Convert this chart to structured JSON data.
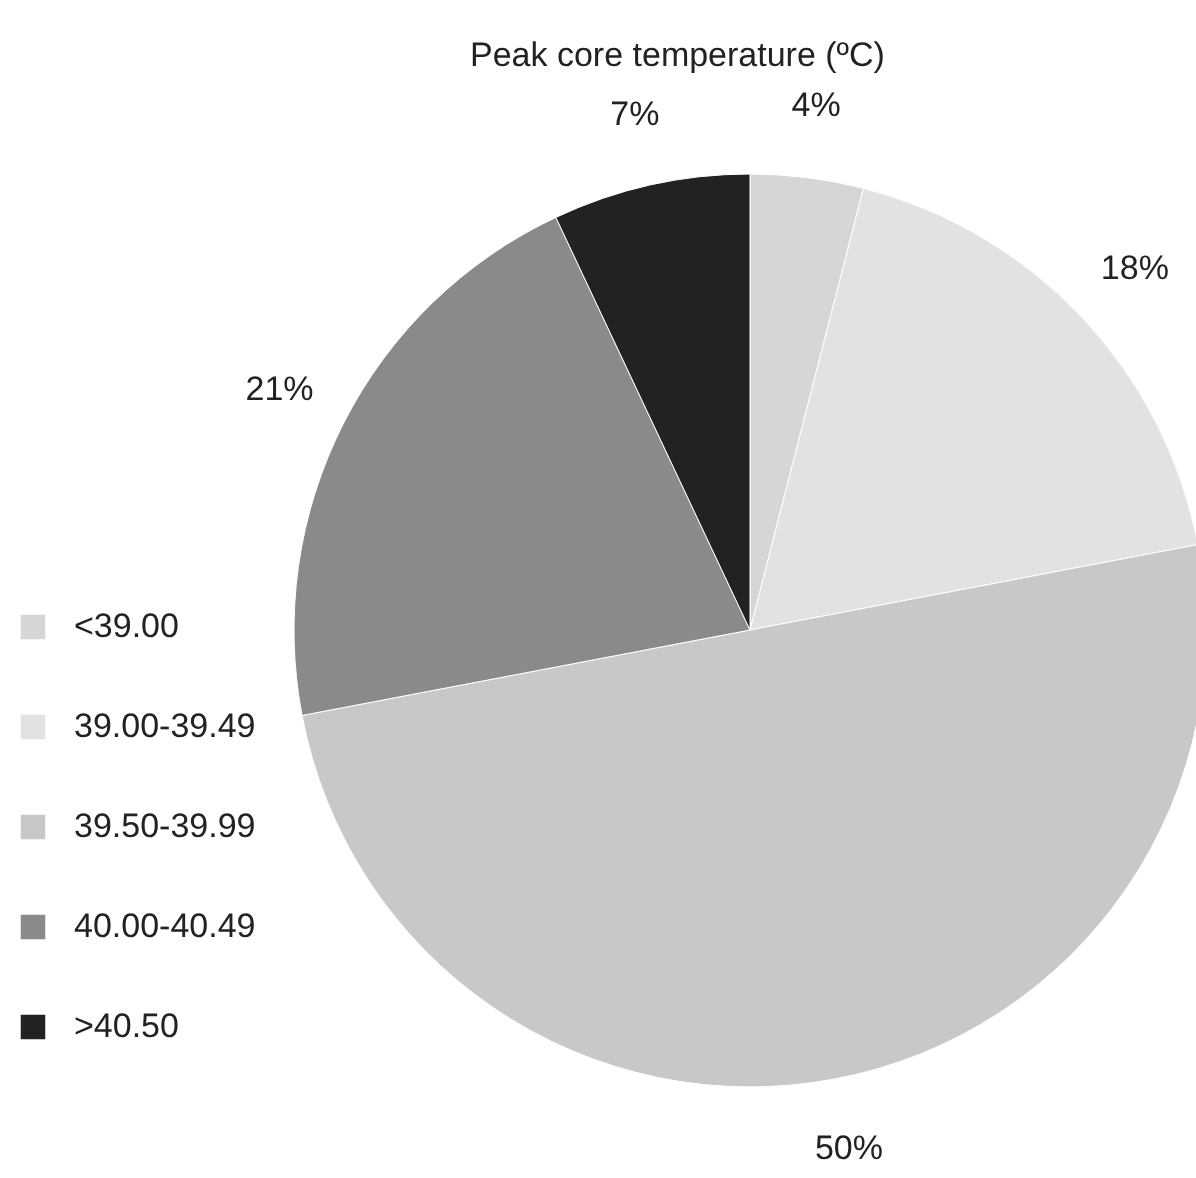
{
  "chart_data": {
    "type": "pie",
    "title": "Peak core temperature (ºC)",
    "categories": [
      "<39.00",
      "39.00-39.49",
      "39.50-39.99",
      "40.00-40.49",
      ">40.50"
    ],
    "values": [
      4,
      18,
      50,
      21,
      7
    ],
    "value_labels": [
      "4%",
      "18%",
      "50%",
      "21%",
      "7%"
    ],
    "colors": [
      "#d6d6d6",
      "#e2e2e2",
      "#c8c8c9",
      "#8a8a8c",
      "#222224"
    ],
    "legend": "bottom left"
  }
}
